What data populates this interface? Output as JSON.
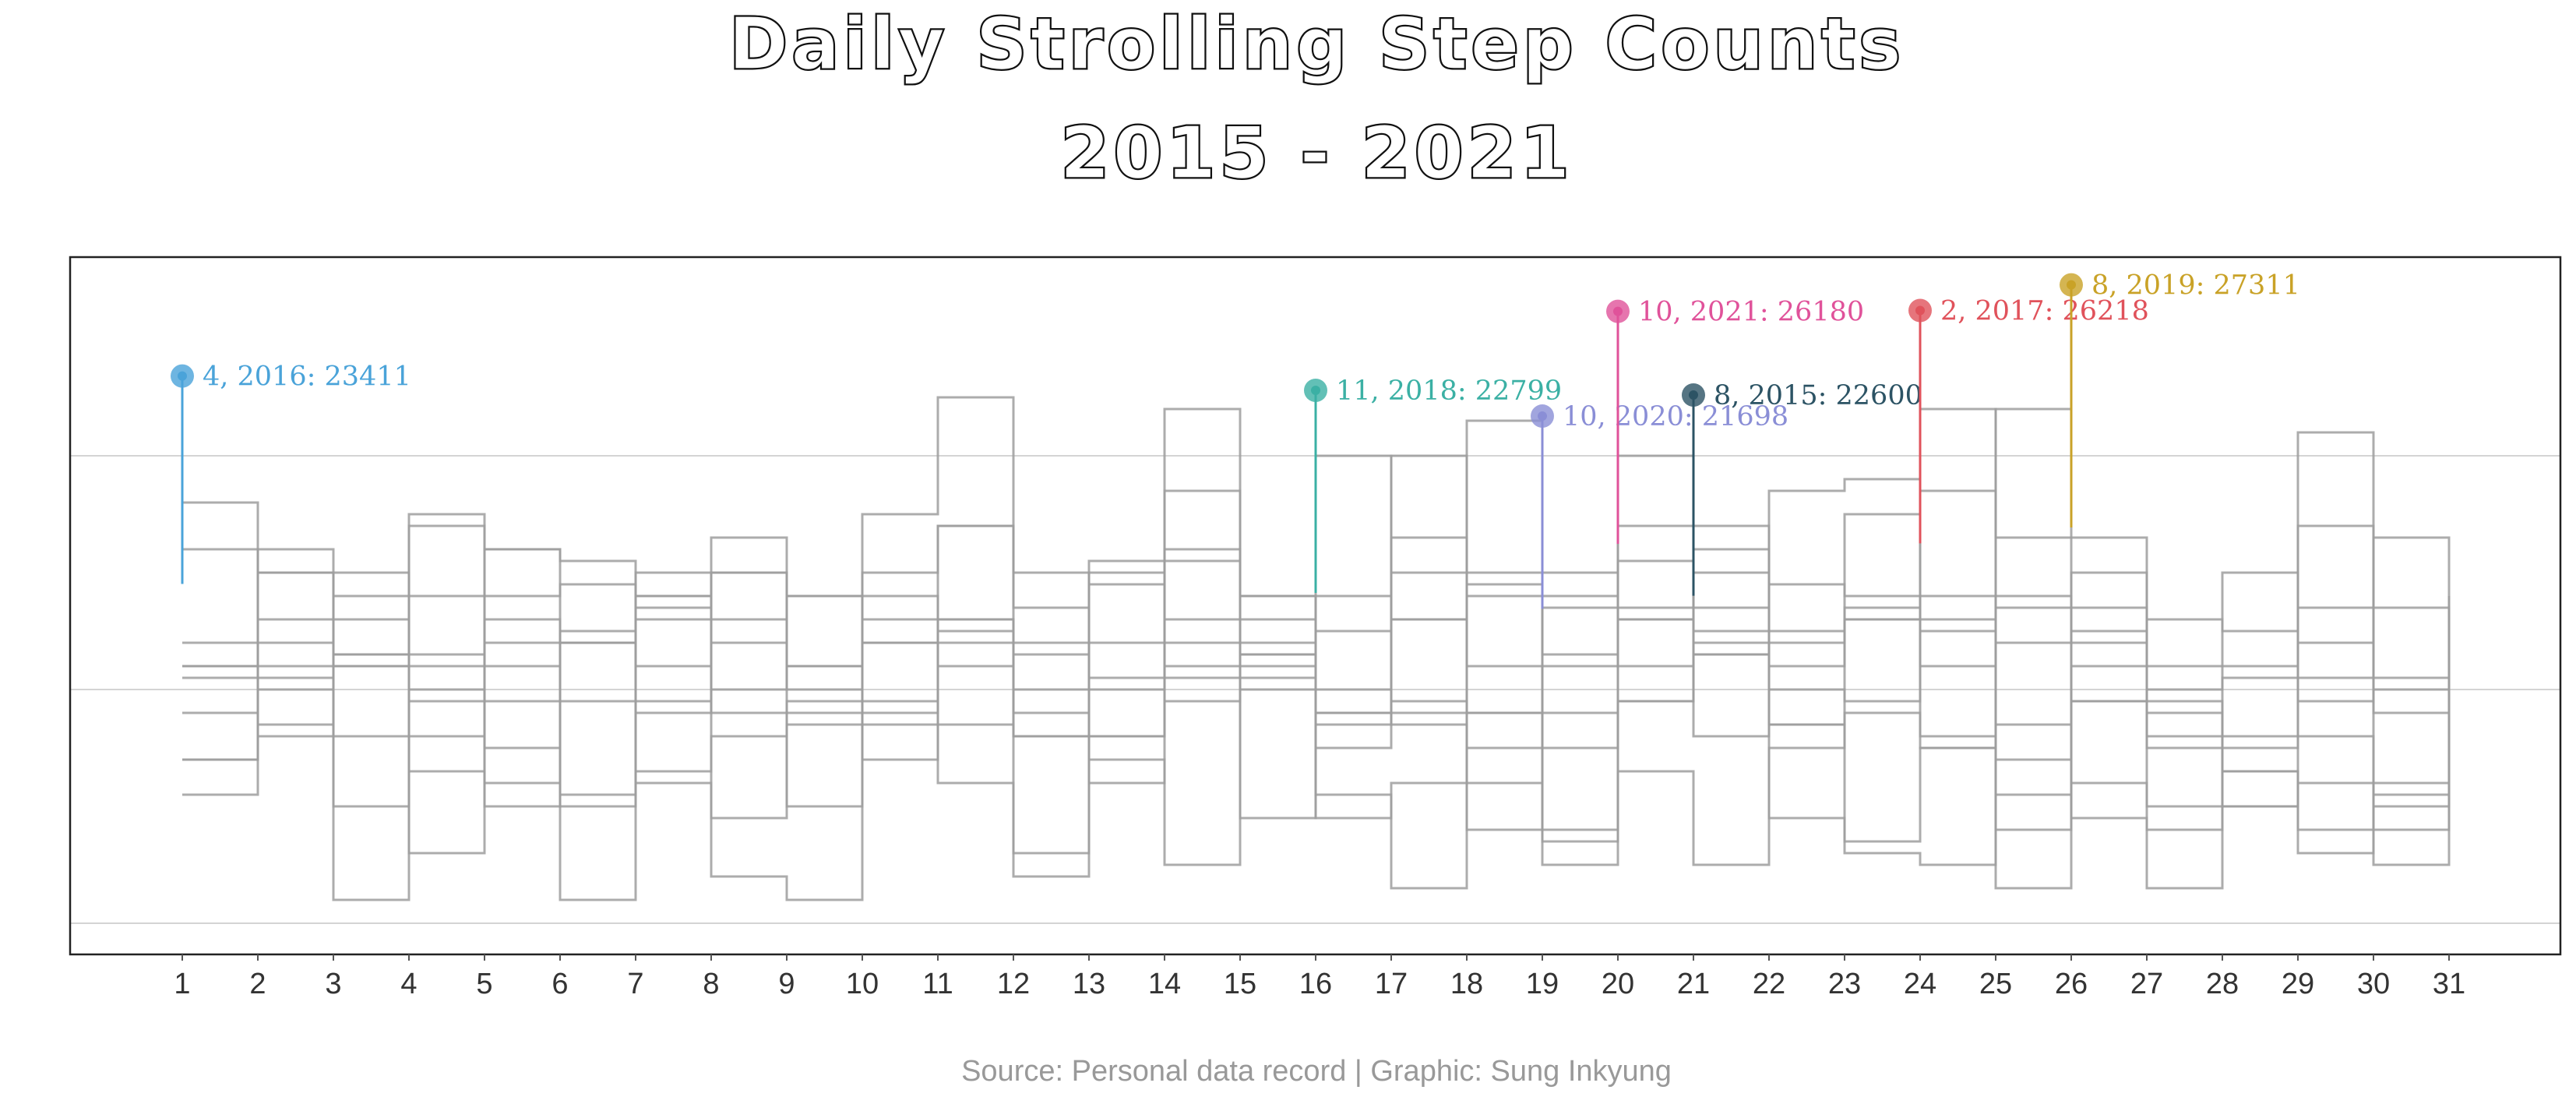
{
  "title": {
    "line1": "Daily Strolling Step Counts",
    "line2": "2015 - 2021"
  },
  "source": "Source: Personal data record | Graphic: Sung Inkyung",
  "colors": {
    "frame": "#222222",
    "grid": "#d4d4d4",
    "steps": "#9e9e9e",
    "tick_text": "#333333",
    "source_text": "#999999"
  },
  "chart_data": {
    "type": "step",
    "x_ticks": [
      "1",
      "2",
      "3",
      "4",
      "5",
      "6",
      "7",
      "8",
      "9",
      "10",
      "11",
      "12",
      "13",
      "14",
      "15",
      "16",
      "17",
      "18",
      "19",
      "20",
      "21",
      "22",
      "23",
      "24",
      "25",
      "26",
      "27",
      "28",
      "29",
      "30",
      "31"
    ],
    "xlim": [
      1,
      31
    ],
    "ylim": [
      0,
      29000
    ],
    "y_gridlines": [
      0,
      10000,
      20000
    ],
    "y_tick_labels_shown": false,
    "grid": true,
    "series_count": 84,
    "series": [
      {
        "values": [
          16000,
          15000,
          11000,
          11000,
          13000,
          12000,
          14000,
          9000,
          9000,
          15000,
          17000,
          15000,
          12000,
          18500,
          11500,
          7500,
          9500,
          6000,
          4000,
          9500,
          13500,
          4500,
          3000,
          2500,
          7000,
          11000,
          9500,
          6500,
          4000,
          6000,
          14000
        ]
      },
      {
        "values": [
          7000,
          11000,
          8000,
          6500,
          5000,
          12000,
          9000,
          10000,
          11000,
          12000,
          13000,
          12000,
          7000,
          2500,
          13000,
          20000,
          13000,
          14500,
          11500,
          17000,
          11500,
          8500,
          3500,
          7500,
          5500,
          9500,
          5000,
          7500,
          10500,
          10000,
          6000
        ]
      },
      {
        "values": [
          12000,
          10000,
          15000,
          11500,
          7500,
          5500,
          6500,
          8000,
          8500,
          9500,
          12500,
          11500,
          10500,
          15500,
          12000,
          8500,
          16500,
          11000,
          7500,
          9500,
          12000,
          14500,
          14000,
          13000,
          13500,
          12500,
          8000,
          6500,
          3000,
          5500,
          11000
        ]
      },
      {
        "values": [
          10500,
          10500,
          5000,
          9500,
          6000,
          12500,
          13500,
          4500,
          9500,
          7000,
          8500,
          8000,
          10000,
          10500,
          11500,
          5500,
          1500,
          7500,
          3500,
          6500,
          2500,
          7500,
          13500,
          18500,
          4000,
          9500,
          9000,
          5000,
          6000,
          2500,
          13000
        ]
      },
      {
        "values": [
          5500,
          8500,
          11500,
          3000,
          14000,
          14500,
          6000,
          2000,
          1000,
          9000,
          11000,
          3000,
          8000,
          12000,
          4500,
          9000,
          8500,
          4000,
          15000,
          13000,
          15000,
          8500,
          9000,
          7500,
          8500,
          4500,
          1500,
          5000,
          17000,
          5000,
          8000
        ]
      },
      {
        "values": [
          9000,
          13000,
          11500,
          17500,
          11000,
          9500,
          15000,
          13000,
          5000,
          12000,
          17000,
          13500,
          6000,
          9500,
          14000,
          4500,
          6000,
          9000,
          2500,
          13500,
          8000,
          12500,
          17500,
          12500,
          1500,
          15000,
          7500,
          8000,
          8000,
          4000,
          9500
        ]
      },
      {
        "values": [
          11000,
          8000,
          11000,
          8000,
          12000,
          1000,
          14000,
          12000,
          14000,
          14000,
          6000,
          2000,
          8000,
          16000,
          11000,
          14000,
          15000,
          21500,
          14000,
          20000,
          16000,
          11000,
          13000,
          11000,
          14000,
          6000,
          4000,
          15000,
          9500,
          16500,
          9000
        ]
      },
      {
        "values": [
          11000,
          15000,
          1000,
          14000,
          16000,
          15500,
          13000,
          15000,
          10000,
          13000,
          13000,
          9000,
          14500,
          22000,
          14000,
          10000,
          20000,
          9000,
          11000,
          13000,
          11500,
          12000,
          13000,
          8000,
          22000,
          16500,
          11000,
          11000,
          12000,
          13500,
          5000
        ]
      },
      {
        "values": [
          18000,
          12000,
          14000,
          17000,
          16000,
          12000,
          11000,
          15000,
          11000,
          17500,
          22500,
          10000,
          15000,
          11000,
          10000,
          9000,
          13000,
          14000,
          9000,
          15500,
          12500,
          18500,
          19000,
          22000,
          16500,
          12000,
          13000,
          12500,
          21000,
          10500,
          10000
        ]
      },
      {
        "values": [
          7000,
          16000,
          13000,
          10000,
          9500,
          5000,
          9500,
          16500,
          14000,
          8500,
          12000,
          8000,
          15500,
          13000,
          10500,
          12500,
          9000,
          15000,
          13500,
          11000,
          17000,
          10000,
          9500,
          14000,
          12000,
          13500,
          10000,
          10500,
          13500,
          9000,
          11500
        ]
      }
    ],
    "highlights": [
      {
        "day": 1,
        "label": "4, 2016: 23411",
        "value": 23411,
        "color": "#4aa3d9"
      },
      {
        "day": 16,
        "label": "11, 2018: 22799",
        "value": 22799,
        "color": "#3bb0a4"
      },
      {
        "day": 19,
        "label": "10, 2020: 21698",
        "value": 21698,
        "color": "#8a8ed6"
      },
      {
        "day": 20,
        "label": "10, 2021: 26180",
        "value": 26180,
        "color": "#e0529a"
      },
      {
        "day": 21,
        "label": "8, 2015: 22600",
        "value": 22600,
        "color": "#2c5364"
      },
      {
        "day": 24,
        "label": "2, 2017: 26218",
        "value": 26218,
        "color": "#e0525b"
      },
      {
        "day": 26,
        "label": "8, 2019: 27311",
        "value": 27311,
        "color": "#c9a227"
      }
    ]
  }
}
